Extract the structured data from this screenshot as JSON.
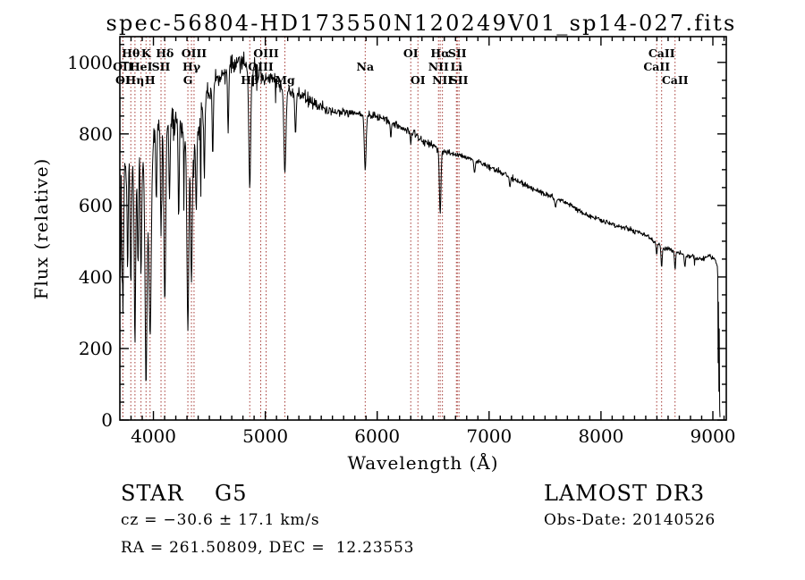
{
  "chart_data": {
    "type": "line",
    "title": "spec-56804-HD173550N120249V01_sp14-027.fits",
    "xlabel": "Wavelength (Å)",
    "ylabel": "Flux (relative)",
    "xlim": [
      3700,
      9120
    ],
    "ylim": [
      0,
      1072
    ],
    "x_ticks": [
      4000,
      5000,
      6000,
      7000,
      8000,
      9000
    ],
    "y_ticks": [
      0,
      200,
      400,
      600,
      800,
      1000
    ],
    "x_minor_step": 100,
    "y_minor_step": 50,
    "grid": false,
    "legend": "none",
    "axis_color": "#000000",
    "line_color": "#000000",
    "marker_line_color": "#a63a35",
    "label_rows_y": [
      64,
      79,
      94
    ],
    "spectral_lines": [
      {
        "label": "Hθ",
        "row": 1,
        "wl": 3798
      },
      {
        "label": "K",
        "row": 1,
        "wl": 3934
      },
      {
        "label": "Hδ",
        "row": 1,
        "wl": 4102
      },
      {
        "label": "OIII",
        "row": 1,
        "wl": 4363
      },
      {
        "label": "OIII",
        "row": 1,
        "wl": 5007
      },
      {
        "label": "OI",
        "row": 1,
        "wl": 6300
      },
      {
        "label": "Hα",
        "row": 1,
        "wl": 6563
      },
      {
        "label": "SII",
        "row": 1,
        "wl": 6716
      },
      {
        "label": "CaII",
        "row": 1,
        "wl": 8542
      },
      {
        "label": "OII",
        "row": 2,
        "wl": 3727
      },
      {
        "label": "HeI",
        "row": 2,
        "wl": 3889
      },
      {
        "label": "SII",
        "row": 2,
        "wl": 4068
      },
      {
        "label": "Hγ",
        "row": 2,
        "wl": 4340
      },
      {
        "label": "OIII",
        "row": 2,
        "wl": 4959
      },
      {
        "label": "Na",
        "row": 2,
        "wl": 5893
      },
      {
        "label": "NII",
        "row": 2,
        "wl": 6548
      },
      {
        "label": "Li",
        "row": 2,
        "wl": 6708
      },
      {
        "label": "CaII",
        "row": 2,
        "wl": 8498
      },
      {
        "label": "OI",
        "row": 3,
        "wl": 3727
      },
      {
        "label": "Hη",
        "row": 3,
        "wl": 3835
      },
      {
        "label": "H",
        "row": 3,
        "wl": 3970
      },
      {
        "label": "G",
        "row": 3,
        "wl": 4308
      },
      {
        "label": "Hβ",
        "row": 3,
        "wl": 4861
      },
      {
        "label": "Mg",
        "row": 3,
        "wl": 5175
      },
      {
        "label": "OI",
        "row": 3,
        "wl": 6364
      },
      {
        "label": "NII",
        "row": 3,
        "wl": 6583
      },
      {
        "label": "SII",
        "row": 3,
        "wl": 6731
      },
      {
        "label": "CaII",
        "row": 3,
        "wl": 8662
      }
    ],
    "continuum": [
      [
        3700,
        560
      ],
      [
        3703,
        140
      ],
      [
        3706,
        880
      ],
      [
        3709,
        230
      ],
      [
        3712,
        840
      ],
      [
        3715,
        360
      ],
      [
        3718,
        940
      ],
      [
        3721,
        300
      ],
      [
        3724,
        700
      ],
      [
        3728,
        600
      ],
      [
        3740,
        720
      ],
      [
        3760,
        690
      ],
      [
        3790,
        755
      ],
      [
        3820,
        700
      ],
      [
        3850,
        665
      ],
      [
        3880,
        770
      ],
      [
        3910,
        720
      ],
      [
        3940,
        580
      ],
      [
        3970,
        540
      ],
      [
        4000,
        790
      ],
      [
        4040,
        830
      ],
      [
        4080,
        810
      ],
      [
        4130,
        840
      ],
      [
        4180,
        830
      ],
      [
        4230,
        845
      ],
      [
        4270,
        800
      ],
      [
        4310,
        750
      ],
      [
        4350,
        740
      ],
      [
        4390,
        800
      ],
      [
        4420,
        860
      ],
      [
        4470,
        905
      ],
      [
        4520,
        930
      ],
      [
        4570,
        950
      ],
      [
        4620,
        965
      ],
      [
        4680,
        990
      ],
      [
        4740,
        1000
      ],
      [
        4800,
        1008
      ],
      [
        4861,
        960
      ],
      [
        4900,
        985
      ],
      [
        4950,
        975
      ],
      [
        5010,
        958
      ],
      [
        5080,
        948
      ],
      [
        5140,
        938
      ],
      [
        5200,
        920
      ],
      [
        5270,
        915
      ],
      [
        5340,
        905
      ],
      [
        5410,
        893
      ],
      [
        5480,
        880
      ],
      [
        5550,
        870
      ],
      [
        5620,
        864
      ],
      [
        5700,
        860
      ],
      [
        5780,
        858
      ],
      [
        5860,
        856
      ],
      [
        5930,
        852
      ],
      [
        6010,
        846
      ],
      [
        6090,
        838
      ],
      [
        6170,
        826
      ],
      [
        6250,
        812
      ],
      [
        6330,
        800
      ],
      [
        6410,
        780
      ],
      [
        6490,
        768
      ],
      [
        6570,
        755
      ],
      [
        6650,
        748
      ],
      [
        6730,
        740
      ],
      [
        6810,
        732
      ],
      [
        6890,
        724
      ],
      [
        6970,
        712
      ],
      [
        7050,
        700
      ],
      [
        7130,
        688
      ],
      [
        7210,
        676
      ],
      [
        7290,
        664
      ],
      [
        7370,
        650
      ],
      [
        7450,
        638
      ],
      [
        7530,
        628
      ],
      [
        7610,
        618
      ],
      [
        7690,
        608
      ],
      [
        7770,
        592
      ],
      [
        7850,
        578
      ],
      [
        7930,
        568
      ],
      [
        8010,
        556
      ],
      [
        8090,
        548
      ],
      [
        8170,
        540
      ],
      [
        8250,
        534
      ],
      [
        8330,
        524
      ],
      [
        8410,
        515
      ],
      [
        8490,
        498
      ],
      [
        8560,
        480
      ],
      [
        8630,
        476
      ],
      [
        8700,
        468
      ],
      [
        8770,
        460
      ],
      [
        8840,
        453
      ],
      [
        8910,
        450
      ],
      [
        8970,
        460
      ],
      [
        9010,
        452
      ],
      [
        9040,
        430
      ]
    ],
    "absorption_dips": [
      {
        "wl": 3727,
        "flux": 300,
        "width": 6
      },
      {
        "wl": 3770,
        "flux": 420,
        "width": 5
      },
      {
        "wl": 3798,
        "flux": 380,
        "width": 6
      },
      {
        "wl": 3835,
        "flux": 210,
        "width": 6
      },
      {
        "wl": 3862,
        "flux": 420,
        "width": 5
      },
      {
        "wl": 3889,
        "flux": 390,
        "width": 6
      },
      {
        "wl": 3934,
        "flux": 110,
        "width": 8
      },
      {
        "wl": 3970,
        "flux": 230,
        "width": 8
      },
      {
        "wl": 4026,
        "flux": 600,
        "width": 5
      },
      {
        "wl": 4068,
        "flux": 520,
        "width": 5
      },
      {
        "wl": 4102,
        "flux": 330,
        "width": 8
      },
      {
        "wl": 4144,
        "flux": 620,
        "width": 5
      },
      {
        "wl": 4226,
        "flux": 560,
        "width": 5
      },
      {
        "wl": 4308,
        "flux": 250,
        "width": 8
      },
      {
        "wl": 4340,
        "flux": 390,
        "width": 7
      },
      {
        "wl": 4383,
        "flux": 580,
        "width": 5
      },
      {
        "wl": 4455,
        "flux": 680,
        "width": 5
      },
      {
        "wl": 4530,
        "flux": 740,
        "width": 5
      },
      {
        "wl": 4668,
        "flux": 800,
        "width": 5
      },
      {
        "wl": 4861,
        "flux": 650,
        "width": 8
      },
      {
        "wl": 5175,
        "flux": 690,
        "width": 9
      },
      {
        "wl": 5270,
        "flux": 800,
        "width": 6
      },
      {
        "wl": 5893,
        "flux": 700,
        "width": 8
      },
      {
        "wl": 6122,
        "flux": 790,
        "width": 5
      },
      {
        "wl": 6300,
        "flux": 770,
        "width": 4
      },
      {
        "wl": 6563,
        "flux": 575,
        "width": 7
      },
      {
        "wl": 6870,
        "flux": 690,
        "width": 6
      },
      {
        "wl": 7186,
        "flux": 650,
        "width": 5
      },
      {
        "wl": 7594,
        "flux": 596,
        "width": 7
      },
      {
        "wl": 8498,
        "flux": 462,
        "width": 5
      },
      {
        "wl": 8542,
        "flux": 425,
        "width": 5
      },
      {
        "wl": 8662,
        "flux": 420,
        "width": 5
      },
      {
        "wl": 8750,
        "flux": 428,
        "width": 5
      }
    ],
    "noise": {
      "seed": 20140526,
      "step": 4,
      "regions": [
        [
          3700,
          3734,
          160
        ],
        [
          3734,
          4000,
          60
        ],
        [
          4000,
          4460,
          45
        ],
        [
          4460,
          5000,
          26
        ],
        [
          5000,
          5600,
          18
        ],
        [
          5600,
          6600,
          11
        ],
        [
          6600,
          7600,
          8
        ],
        [
          7600,
          9040,
          7
        ]
      ]
    },
    "spectrum_end": 9040,
    "end_tail": [
      [
        9044,
        400
      ],
      [
        9047,
        160
      ],
      [
        9050,
        330
      ],
      [
        9054,
        80
      ],
      [
        9057,
        255
      ],
      [
        9061,
        30
      ],
      [
        9064,
        8
      ]
    ]
  },
  "footer": {
    "star_class_line": "STAR    G5",
    "survey": "LAMOST DR3",
    "cz_line": "cz = −30.6 ± 17.1 km/s",
    "obs_date_line": "Obs-Date: 20140526",
    "radec_line": "RA = 261.50809, DEC =  12.23553"
  }
}
